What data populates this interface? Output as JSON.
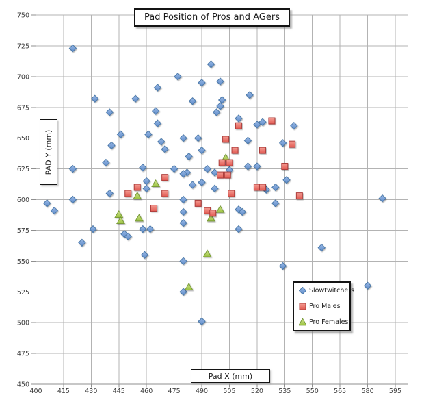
{
  "title": "Pad Position of Pros and AGers",
  "colors": {
    "grid": "#b3b3b3",
    "axis": "#8f8f8f",
    "tick_text": "#3f3f3f",
    "background": "#ffffff",
    "series_blue": "#6f9bd9",
    "series_red": "#e9706b",
    "series_green": "#a3cb57"
  },
  "chart_data": {
    "type": "scatter",
    "title": "Pad Position of Pros and AGers",
    "xlabel": "Pad X (mm)",
    "ylabel": "PAD Y (mm)",
    "xlim": [
      400,
      595
    ],
    "ylim": [
      450,
      750
    ],
    "grid": true,
    "legend_position": "inside-lower-right",
    "x_ticks": [
      400,
      415,
      430,
      445,
      460,
      475,
      490,
      505,
      520,
      535,
      550,
      565,
      580,
      595
    ],
    "y_ticks": [
      450,
      475,
      500,
      525,
      550,
      575,
      600,
      625,
      650,
      675,
      700,
      725,
      750
    ],
    "series": [
      {
        "name": "Slowtwitchers",
        "marker": "diamond",
        "color": "#6f9bd9",
        "fill_light": "#9ab9e6",
        "fill_dark": "#5f8cc9",
        "stroke": "#4c79a9",
        "points": [
          [
            420,
            723
          ],
          [
            495,
            710
          ],
          [
            477,
            700
          ],
          [
            490,
            695
          ],
          [
            500,
            696
          ],
          [
            466,
            691
          ],
          [
            432,
            682
          ],
          [
            454,
            682
          ],
          [
            516,
            685
          ],
          [
            485,
            680
          ],
          [
            501,
            681
          ],
          [
            500,
            676
          ],
          [
            440,
            671
          ],
          [
            465,
            672
          ],
          [
            498,
            671
          ],
          [
            510,
            666
          ],
          [
            466,
            662
          ],
          [
            520,
            661
          ],
          [
            523,
            663
          ],
          [
            540,
            660
          ],
          [
            446,
            653
          ],
          [
            461,
            653
          ],
          [
            468,
            647
          ],
          [
            441,
            644
          ],
          [
            470,
            641
          ],
          [
            480,
            650
          ],
          [
            488,
            650
          ],
          [
            515,
            648
          ],
          [
            534,
            646
          ],
          [
            490,
            640
          ],
          [
            483,
            635
          ],
          [
            438,
            630
          ],
          [
            503,
            631
          ],
          [
            420,
            625
          ],
          [
            458,
            626
          ],
          [
            475,
            625
          ],
          [
            493,
            625
          ],
          [
            497,
            622
          ],
          [
            505,
            624
          ],
          [
            482,
            622
          ],
          [
            480,
            621
          ],
          [
            515,
            627
          ],
          [
            520,
            627
          ],
          [
            536,
            616
          ],
          [
            460,
            615
          ],
          [
            490,
            614
          ],
          [
            485,
            612
          ],
          [
            460,
            609
          ],
          [
            497,
            609
          ],
          [
            525,
            608
          ],
          [
            530,
            610
          ],
          [
            440,
            605
          ],
          [
            420,
            600
          ],
          [
            480,
            600
          ],
          [
            406,
            597
          ],
          [
            530,
            597
          ],
          [
            410,
            591
          ],
          [
            510,
            592
          ],
          [
            512,
            590
          ],
          [
            480,
            590
          ],
          [
            588,
            601
          ],
          [
            480,
            581
          ],
          [
            431,
            576
          ],
          [
            458,
            576
          ],
          [
            462,
            576
          ],
          [
            510,
            576
          ],
          [
            448,
            572
          ],
          [
            450,
            570
          ],
          [
            425,
            565
          ],
          [
            459,
            555
          ],
          [
            555,
            561
          ],
          [
            480,
            550
          ],
          [
            534,
            546
          ],
          [
            580,
            530
          ],
          [
            480,
            525
          ],
          [
            490,
            501
          ]
        ]
      },
      {
        "name": "Pro Males",
        "marker": "square",
        "color": "#e9706b",
        "fill_light": "#f49d94",
        "fill_dark": "#e25a52",
        "stroke": "#ad3e3b",
        "points": [
          [
            528,
            664
          ],
          [
            510,
            660
          ],
          [
            503,
            649
          ],
          [
            539,
            645
          ],
          [
            508,
            640
          ],
          [
            523,
            640
          ],
          [
            535,
            627
          ],
          [
            501,
            630
          ],
          [
            505,
            630
          ],
          [
            500,
            620
          ],
          [
            504,
            620
          ],
          [
            470,
            618
          ],
          [
            455,
            610
          ],
          [
            520,
            610
          ],
          [
            523,
            610
          ],
          [
            506,
            605
          ],
          [
            450,
            605
          ],
          [
            470,
            605
          ],
          [
            543,
            603
          ],
          [
            488,
            597
          ],
          [
            464,
            593
          ],
          [
            493,
            591
          ],
          [
            496,
            589
          ]
        ]
      },
      {
        "name": "Pro Females",
        "marker": "triangle",
        "color": "#a3cb57",
        "fill_light": "#cfe292",
        "fill_dark": "#9cc33f",
        "stroke": "#789a38",
        "points": [
          [
            465,
            613
          ],
          [
            455,
            603
          ],
          [
            503,
            634
          ],
          [
            500,
            592
          ],
          [
            495,
            585
          ],
          [
            445,
            588
          ],
          [
            446,
            583
          ],
          [
            456,
            585
          ],
          [
            493,
            556
          ],
          [
            483,
            529
          ]
        ]
      }
    ]
  }
}
